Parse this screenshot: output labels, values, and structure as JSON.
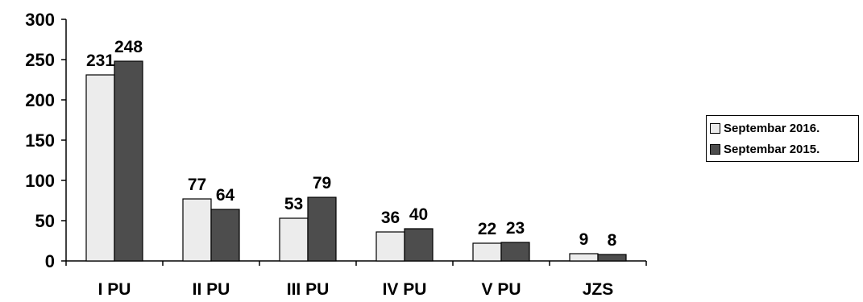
{
  "chart_data": {
    "type": "bar",
    "title": "",
    "xlabel": "",
    "ylabel": "",
    "ylim": [
      0,
      300
    ],
    "yticks": [
      0,
      50,
      100,
      150,
      200,
      250,
      300
    ],
    "categories": [
      "I PU",
      "II PU",
      "III PU",
      "IV PU",
      "V PU",
      "JZS"
    ],
    "series": [
      {
        "name": "Septembar 2016.",
        "color": "#ececec",
        "values": [
          231,
          77,
          53,
          36,
          22,
          9
        ]
      },
      {
        "name": "Septembar 2015.",
        "color": "#4d4d4d",
        "values": [
          248,
          64,
          79,
          40,
          23,
          8
        ]
      }
    ],
    "grid": false,
    "legend_position": "right"
  }
}
